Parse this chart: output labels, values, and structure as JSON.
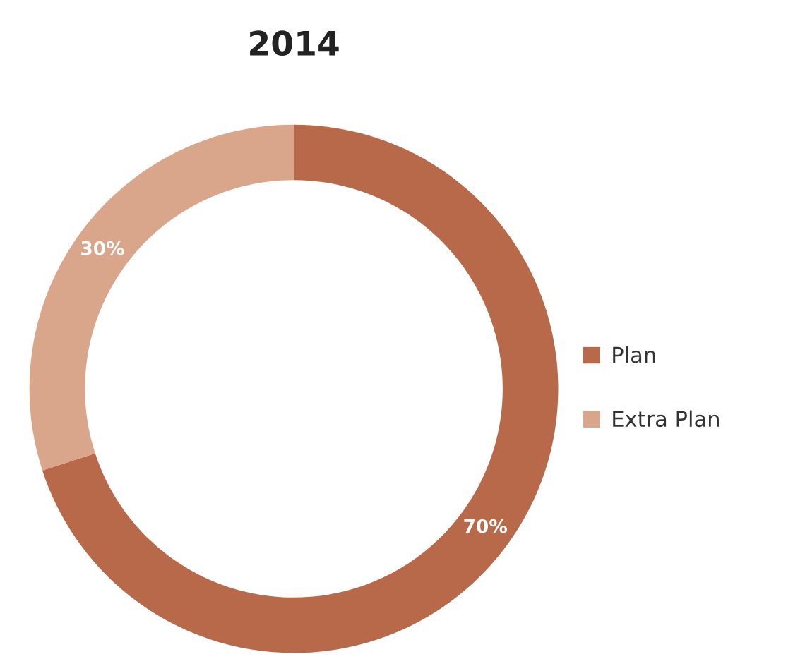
{
  "chart_data": {
    "type": "donut",
    "title": "2014",
    "categories": [
      "Plan",
      "Extra Plan"
    ],
    "values": [
      70,
      30
    ],
    "colors": [
      "#b8694a",
      "#d9a58b"
    ],
    "value_labels": [
      "70%",
      "30%"
    ],
    "legend": "right"
  }
}
